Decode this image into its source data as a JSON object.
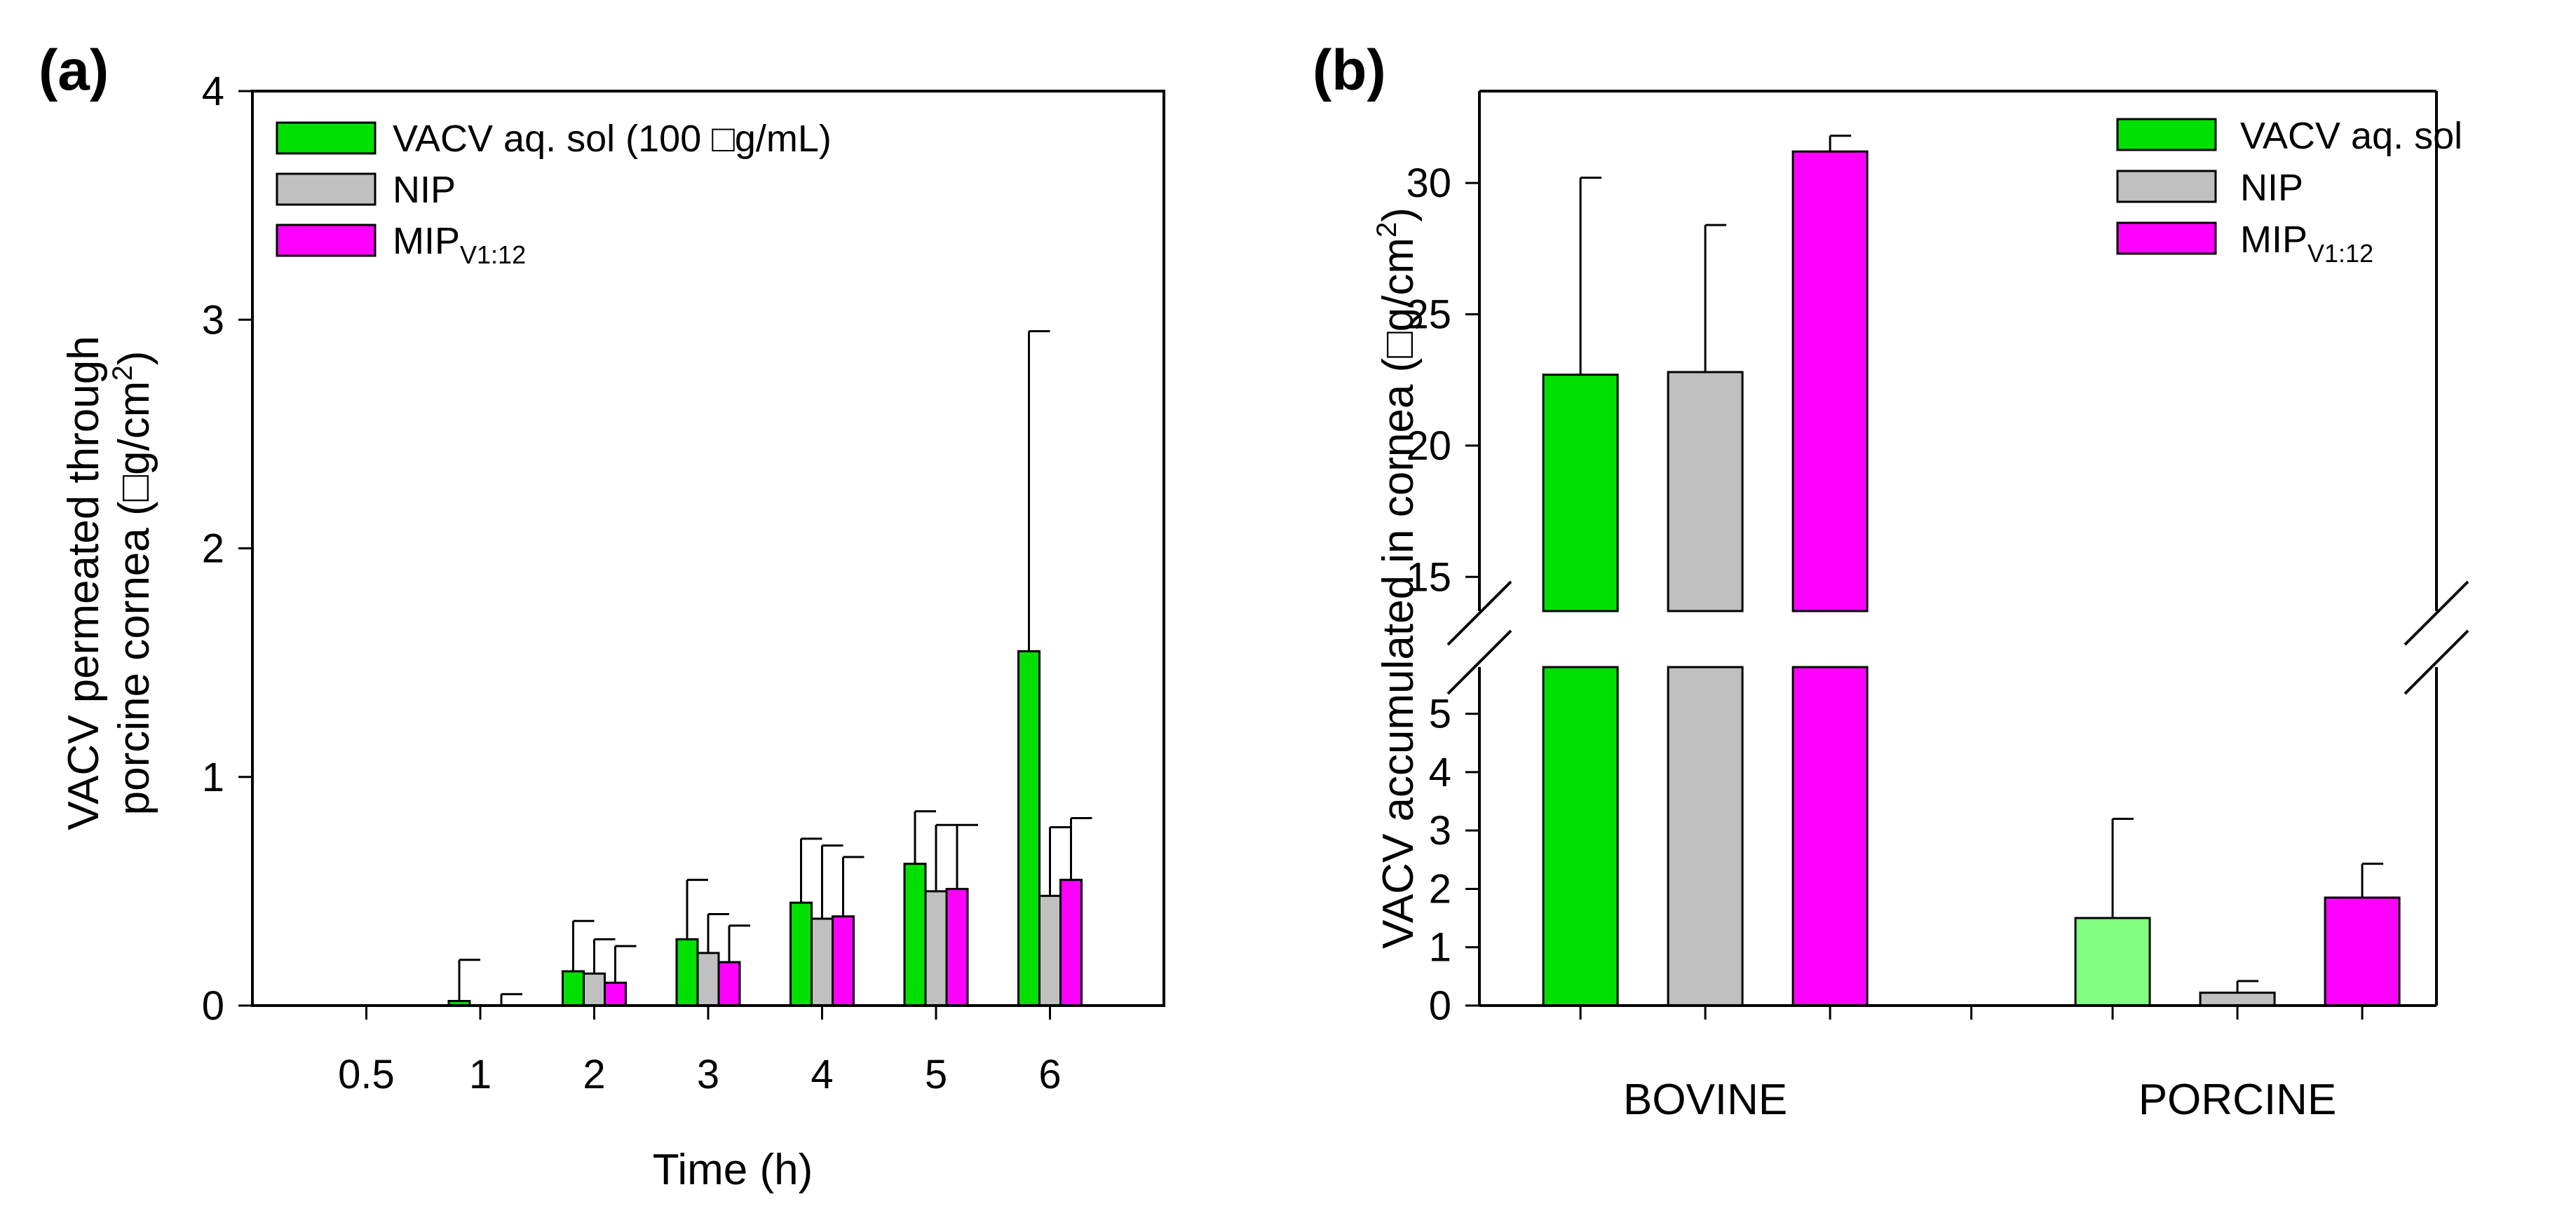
{
  "chart_data": [
    {
      "panel_label": "(a)",
      "type": "bar",
      "xlabel": "Time (h)",
      "ylabel_line1": "VACV permeated through",
      "ylabel_line2_prefix": "porcine cornea (",
      "ylabel_unit": "□g/cm",
      "ylabel_sup": "2",
      "ylabel_close": ")",
      "ylim": [
        0,
        4
      ],
      "yticks": [
        "0",
        "1",
        "2",
        "3",
        "4"
      ],
      "categories": [
        "0.5",
        "1",
        "2",
        "3",
        "4",
        "5",
        "6"
      ],
      "legend": {
        "position": "top-left",
        "entries": [
          {
            "label": "VACV aq. sol (100 □g/mL)",
            "sub": ""
          },
          {
            "label": "NIP",
            "sub": ""
          },
          {
            "label": "MIP",
            "sub": "V1:12"
          }
        ]
      },
      "series": [
        {
          "name": "VACV aq. sol (100 □g/mL)",
          "color": "#00e000",
          "values": [
            0,
            0.02,
            0.15,
            0.29,
            0.45,
            0.62,
            1.55
          ],
          "errors": [
            0,
            0.18,
            0.22,
            0.26,
            0.28,
            0.23,
            1.4
          ]
        },
        {
          "name": "NIP",
          "color": "#c0c0c0",
          "values": [
            0,
            0,
            0.14,
            0.23,
            0.38,
            0.5,
            0.48
          ],
          "errors": [
            0,
            0,
            0.15,
            0.17,
            0.32,
            0.29,
            0.3
          ]
        },
        {
          "name": "MIP V1:12",
          "color": "#ff00ff",
          "values": [
            0,
            0,
            0.1,
            0.19,
            0.39,
            0.51,
            0.55
          ],
          "errors": [
            0,
            0.05,
            0.16,
            0.16,
            0.26,
            0.28,
            0.27
          ]
        }
      ]
    },
    {
      "panel_label": "(b)",
      "type": "bar",
      "xlabel": "",
      "ylabel_prefix": "VACV accumulated in cornea (",
      "ylabel_unit": "□g/cm",
      "ylabel_sup": "2",
      "ylabel_close": ")",
      "axis_break": {
        "lower_range": [
          0,
          5.8
        ],
        "upper_range": [
          13.7,
          33.5
        ]
      },
      "yticks_lower": [
        "0",
        "1",
        "2",
        "3",
        "4",
        "5"
      ],
      "yticks_upper": [
        "15",
        "20",
        "25",
        "30"
      ],
      "categories": [
        "BOVINE",
        "PORCINE"
      ],
      "legend": {
        "position": "top-right",
        "entries": [
          {
            "label": "VACV aq. sol",
            "sub": ""
          },
          {
            "label": "NIP",
            "sub": ""
          },
          {
            "label": "MIP",
            "sub": "V1:12"
          }
        ]
      },
      "series": [
        {
          "name": "VACV aq. sol",
          "colors": [
            "#00e000",
            "#80ff80"
          ],
          "values": [
            22.7,
            1.5
          ],
          "errors": [
            7.5,
            1.7
          ]
        },
        {
          "name": "NIP",
          "colors": [
            "#c0c0c0",
            "#c0c0c0"
          ],
          "values": [
            22.8,
            0.22
          ],
          "errors": [
            5.6,
            0.2
          ]
        },
        {
          "name": "MIP V1:12",
          "colors": [
            "#ff00ff",
            "#ff00ff"
          ],
          "values": [
            31.2,
            1.85
          ],
          "errors": [
            0.6,
            0.58
          ]
        }
      ]
    }
  ]
}
